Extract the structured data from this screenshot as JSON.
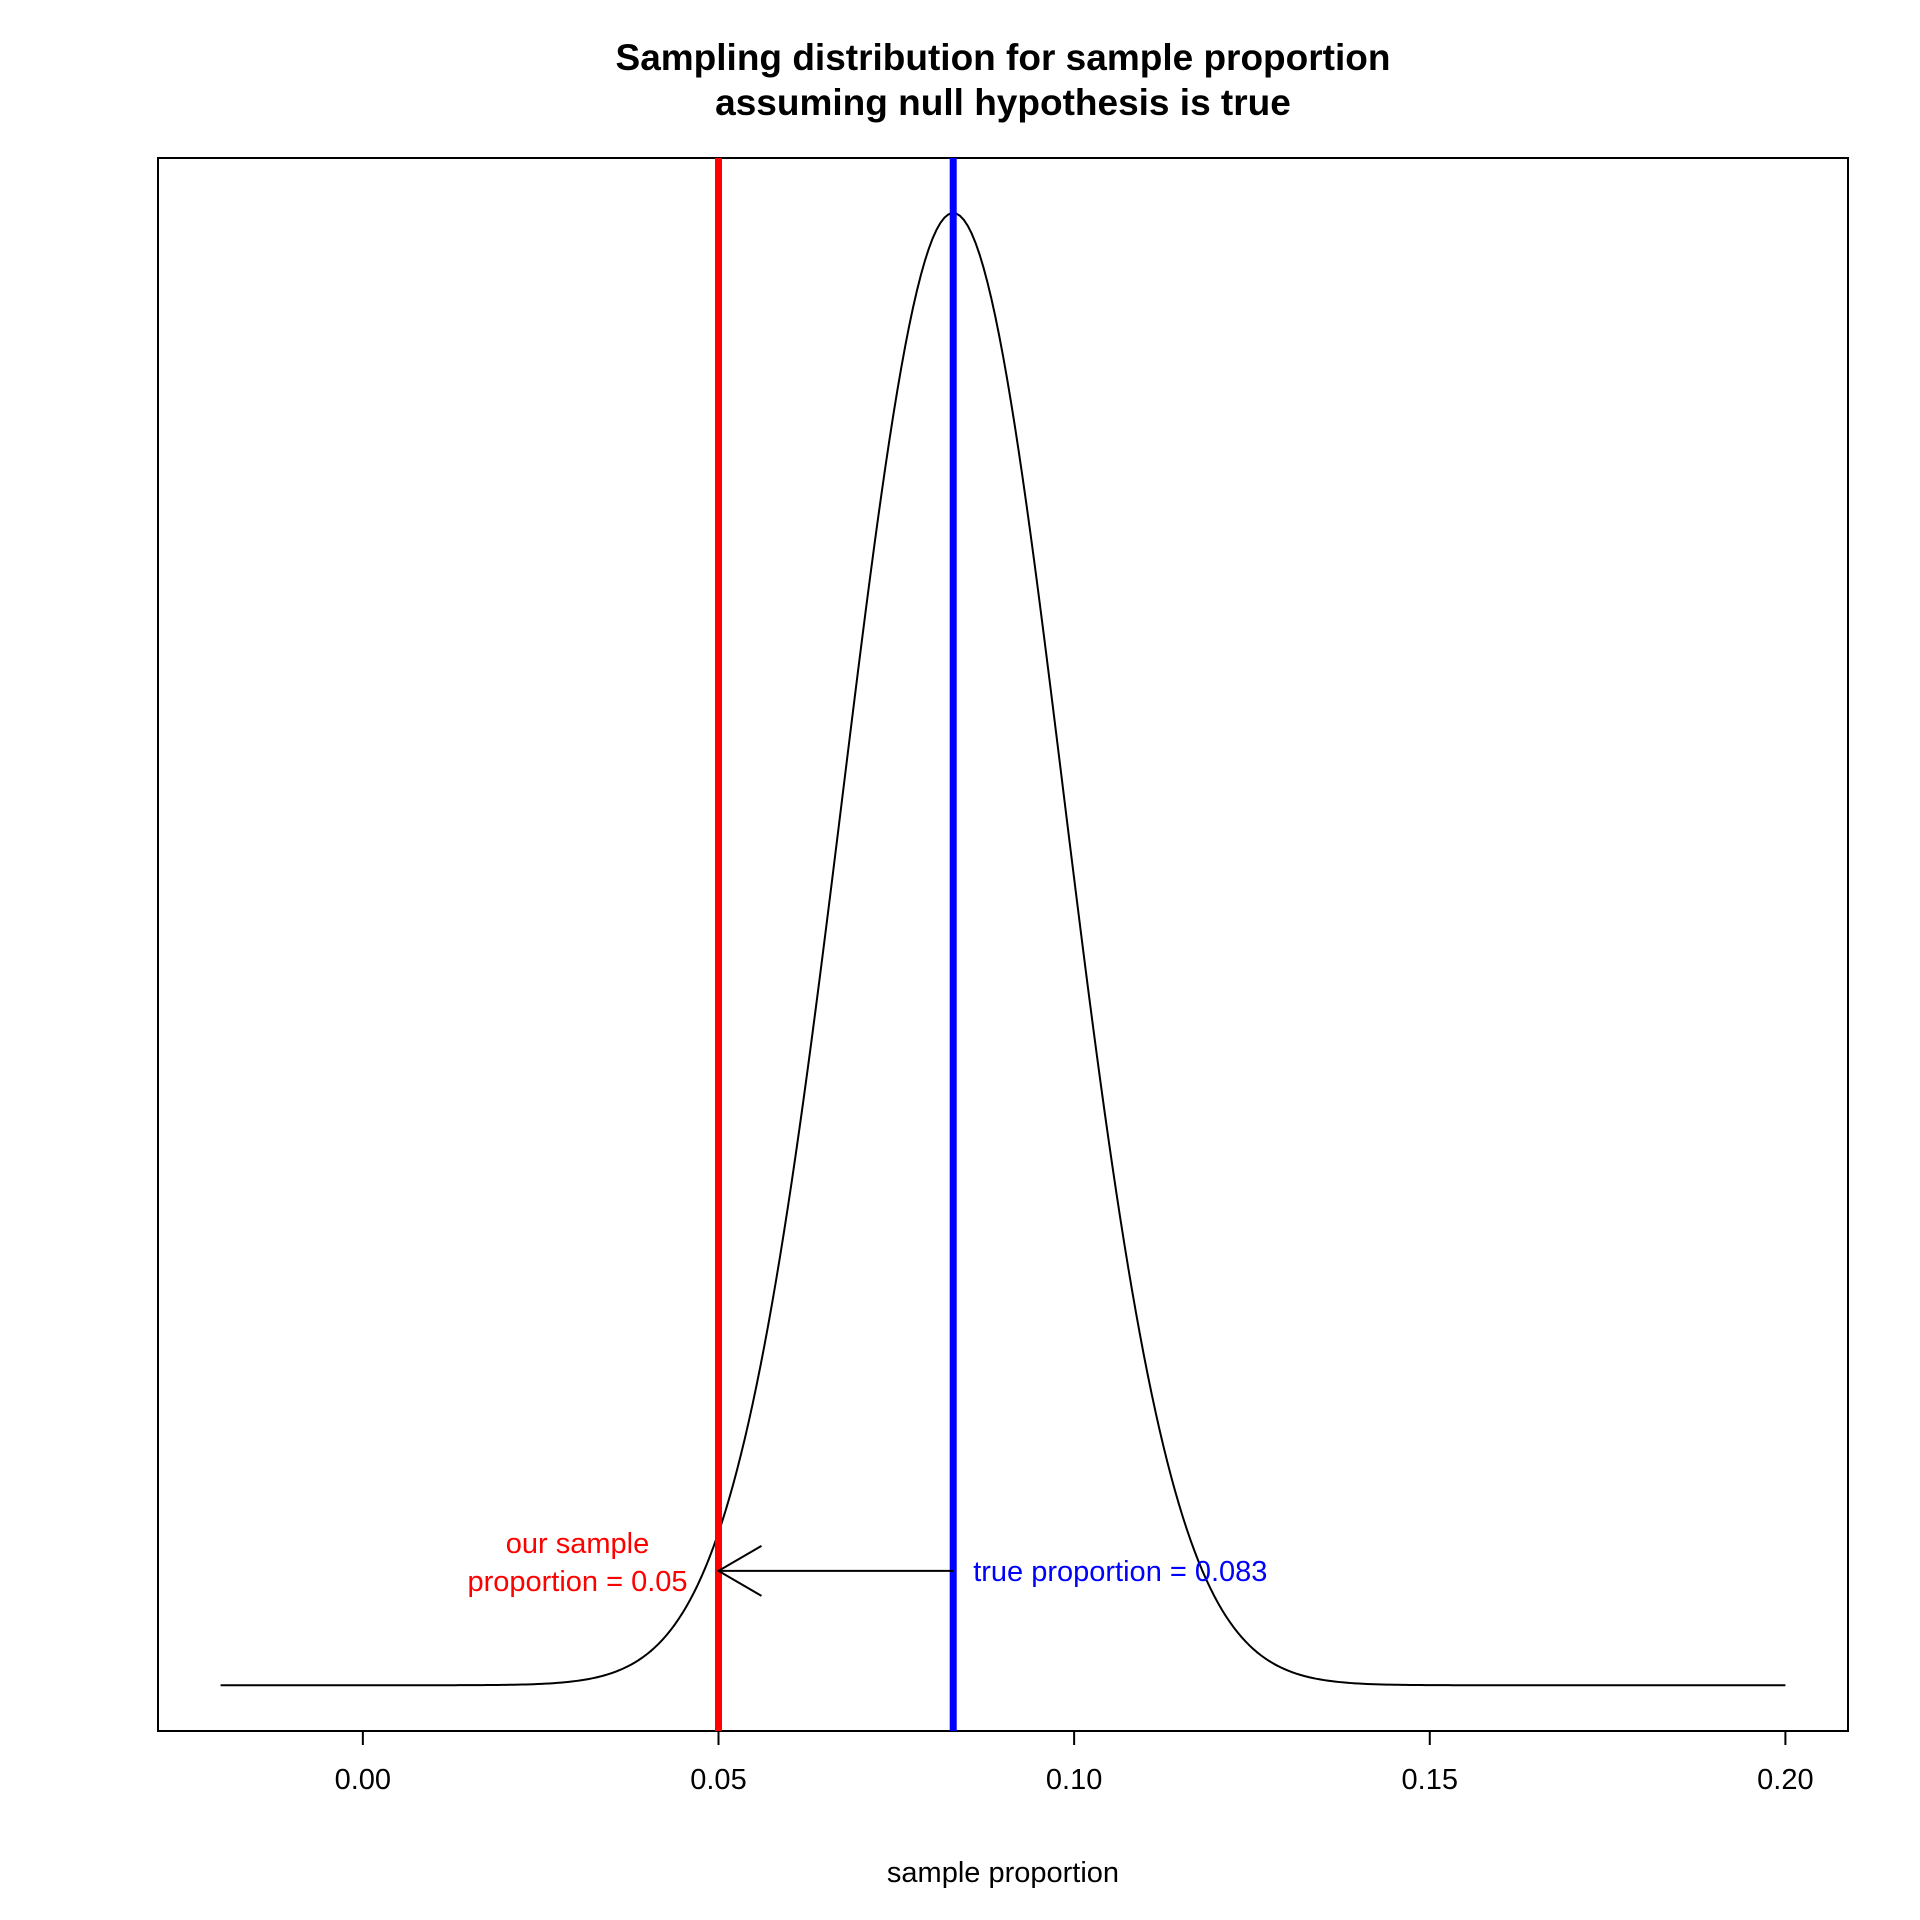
{
  "chart_data": {
    "type": "line",
    "title": [
      "Sampling distribution for sample proportion",
      "assuming null hypothesis is true"
    ],
    "xlabel": "sample proportion",
    "ylabel": "",
    "xlim": [
      -0.0288,
      0.2088
    ],
    "ylim": [
      -0.8,
      26.7
    ],
    "xticks": [
      0.0,
      0.05,
      0.1,
      0.15,
      0.2
    ],
    "xtick_labels": [
      "0.00",
      "0.05",
      "0.10",
      "0.15",
      "0.20"
    ],
    "y_axis_shown": false,
    "grid": false,
    "series": [
      {
        "type": "normal-density",
        "mean": 0.083,
        "sd": 0.0155,
        "x_range": [
          -0.02,
          0.2
        ],
        "color": "#000000"
      }
    ],
    "reference_lines": [
      {
        "x": 0.05,
        "color": "#ff0000",
        "label_lines": [
          "our sample",
          "proportion = 0.05"
        ]
      },
      {
        "x": 0.083,
        "color": "#0000ff",
        "label_lines": [
          "true proportion = 0.083"
        ]
      }
    ],
    "arrow": {
      "from_x": 0.083,
      "to_x": 0.05,
      "y_density": 2.0,
      "color": "#000000"
    }
  }
}
